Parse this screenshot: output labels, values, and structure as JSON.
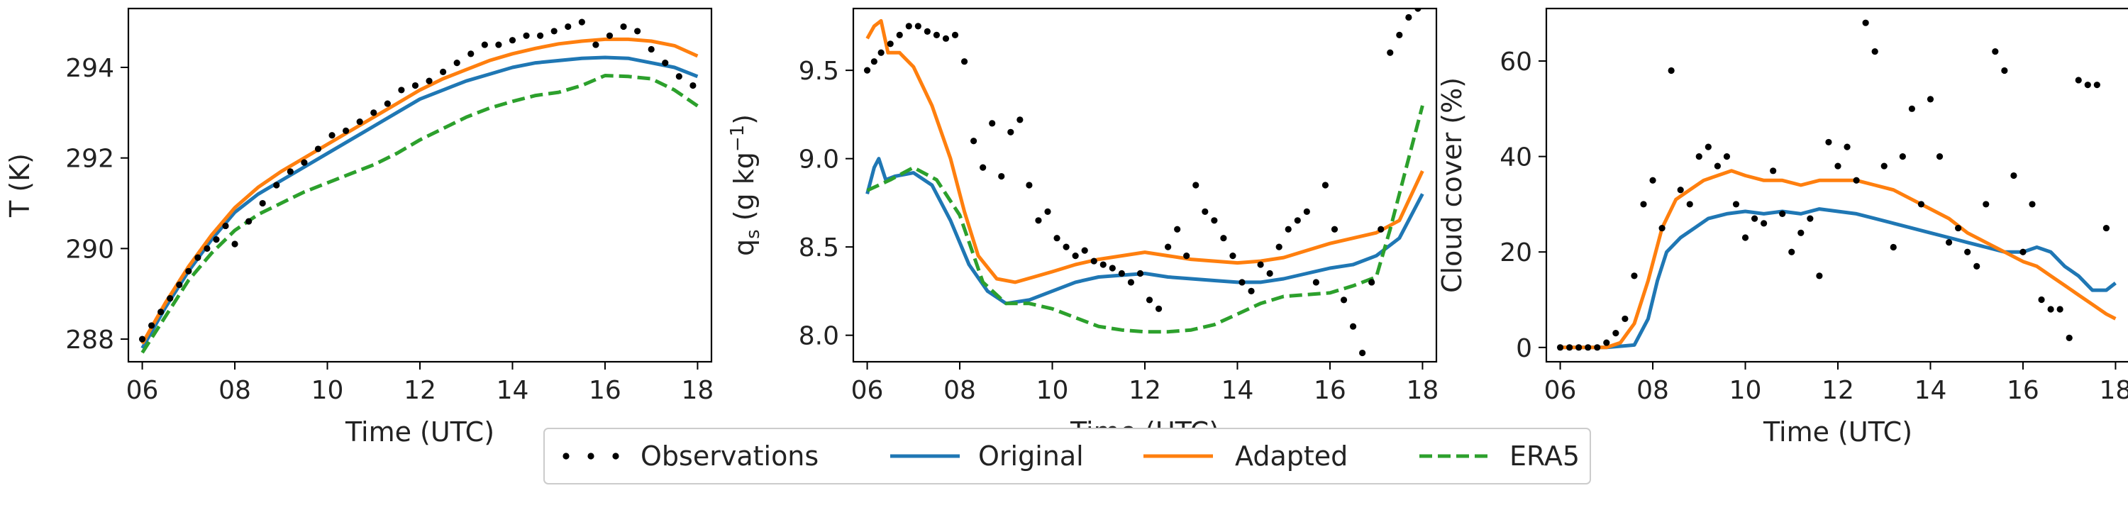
{
  "chart_data": [
    {
      "type": "line",
      "xlabel": "Time (UTC)",
      "ylabel": "T (K)",
      "xlim": [
        5.7,
        18.3
      ],
      "ylim": [
        287.5,
        295.3
      ],
      "xticks": [
        6,
        8,
        10,
        12,
        14,
        16,
        18
      ],
      "xtick_labels": [
        "06",
        "08",
        "10",
        "12",
        "14",
        "16",
        "18"
      ],
      "yticks": [
        288,
        290,
        292,
        294
      ],
      "ytick_labels": [
        "288",
        "290",
        "292",
        "294"
      ],
      "series": [
        {
          "name": "Original",
          "color": "#1f77b4",
          "style": "solid",
          "x": [
            6,
            6.5,
            7,
            7.5,
            8,
            8.5,
            9,
            9.5,
            10,
            10.5,
            11,
            11.5,
            12,
            12.5,
            13,
            13.5,
            14,
            14.5,
            15,
            15.5,
            16,
            16.5,
            17,
            17.5,
            18
          ],
          "y": [
            287.8,
            288.7,
            289.5,
            290.2,
            290.8,
            291.2,
            291.5,
            291.8,
            292.1,
            292.4,
            292.7,
            293.0,
            293.3,
            293.5,
            293.7,
            293.85,
            294.0,
            294.1,
            294.15,
            294.2,
            294.22,
            294.2,
            294.1,
            294.0,
            293.8
          ]
        },
        {
          "name": "Adapted",
          "color": "#ff7f0e",
          "style": "solid",
          "x": [
            6,
            6.5,
            7,
            7.5,
            8,
            8.5,
            9,
            9.5,
            10,
            10.5,
            11,
            11.5,
            12,
            12.5,
            13,
            13.5,
            14,
            14.5,
            15,
            15.5,
            16,
            16.5,
            17,
            17.5,
            18
          ],
          "y": [
            287.9,
            288.8,
            289.6,
            290.3,
            290.9,
            291.35,
            291.7,
            292.0,
            292.3,
            292.6,
            292.9,
            293.2,
            293.5,
            293.75,
            293.95,
            294.15,
            294.3,
            294.42,
            294.52,
            294.58,
            294.62,
            294.62,
            294.58,
            294.48,
            294.25
          ]
        },
        {
          "name": "ERA5",
          "color": "#2ca02c",
          "style": "dashed",
          "x": [
            6,
            6.5,
            7,
            7.5,
            8,
            8.5,
            9,
            9.5,
            10,
            10.5,
            11,
            11.5,
            12,
            12.5,
            13,
            13.5,
            14,
            14.5,
            15,
            15.5,
            16,
            16.5,
            17,
            17.5,
            18
          ],
          "y": [
            287.7,
            288.5,
            289.3,
            289.9,
            290.4,
            290.75,
            291.0,
            291.25,
            291.45,
            291.65,
            291.85,
            292.1,
            292.4,
            292.65,
            292.9,
            293.1,
            293.25,
            293.38,
            293.45,
            293.6,
            293.82,
            293.8,
            293.75,
            293.5,
            293.15
          ]
        },
        {
          "name": "Observations",
          "color": "#000000",
          "style": "dots",
          "x": [
            6,
            6.2,
            6.4,
            6.6,
            6.8,
            7,
            7.2,
            7.4,
            7.6,
            7.8,
            8,
            8.3,
            8.6,
            8.9,
            9.2,
            9.5,
            9.8,
            10.1,
            10.4,
            10.7,
            11,
            11.3,
            11.6,
            11.9,
            12.2,
            12.5,
            12.8,
            13.1,
            13.4,
            13.7,
            14,
            14.3,
            14.6,
            14.9,
            15.2,
            15.5,
            15.8,
            16.1,
            16.4,
            16.7,
            17,
            17.3,
            17.6,
            17.9
          ],
          "y": [
            288.0,
            288.3,
            288.6,
            288.9,
            289.2,
            289.5,
            289.8,
            290.0,
            290.2,
            290.5,
            290.1,
            290.6,
            291.0,
            291.4,
            291.7,
            291.9,
            292.2,
            292.5,
            292.6,
            292.8,
            293.0,
            293.2,
            293.5,
            293.6,
            293.7,
            293.9,
            294.1,
            294.3,
            294.5,
            294.5,
            294.6,
            294.7,
            294.7,
            294.8,
            294.9,
            295.0,
            294.5,
            294.7,
            294.9,
            294.8,
            294.4,
            294.1,
            293.8,
            293.6
          ]
        }
      ]
    },
    {
      "type": "line",
      "xlabel": "Time (UTC)",
      "ylabel_main": "q",
      "ylabel_sub": "s",
      "ylabel_rest": " (g kg",
      "ylabel_sup": "−1",
      "ylabel_close": ")",
      "xlim": [
        5.7,
        18.3
      ],
      "ylim": [
        7.85,
        9.85
      ],
      "xticks": [
        6,
        8,
        10,
        12,
        14,
        16,
        18
      ],
      "xtick_labels": [
        "06",
        "08",
        "10",
        "12",
        "14",
        "16",
        "18"
      ],
      "yticks": [
        8.0,
        8.5,
        9.0,
        9.5
      ],
      "ytick_labels": [
        "8.0",
        "8.5",
        "9.0",
        "9.5"
      ],
      "series": [
        {
          "name": "Original",
          "color": "#1f77b4",
          "style": "solid",
          "x": [
            6,
            6.15,
            6.25,
            6.4,
            6.6,
            7,
            7.4,
            7.8,
            8.2,
            8.6,
            9,
            9.5,
            10,
            10.5,
            11,
            11.5,
            12,
            12.5,
            13,
            13.5,
            14,
            14.5,
            15,
            15.5,
            16,
            16.5,
            17,
            17.5,
            18
          ],
          "y": [
            8.8,
            8.95,
            9.0,
            8.88,
            8.9,
            8.92,
            8.85,
            8.65,
            8.4,
            8.25,
            8.18,
            8.2,
            8.25,
            8.3,
            8.33,
            8.34,
            8.35,
            8.33,
            8.32,
            8.31,
            8.3,
            8.3,
            8.32,
            8.35,
            8.38,
            8.4,
            8.45,
            8.55,
            8.8
          ]
        },
        {
          "name": "Adapted",
          "color": "#ff7f0e",
          "style": "solid",
          "x": [
            6,
            6.15,
            6.3,
            6.45,
            6.7,
            7,
            7.4,
            7.8,
            8.1,
            8.4,
            8.8,
            9.2,
            9.6,
            10,
            10.5,
            11,
            11.5,
            12,
            12.5,
            13,
            13.5,
            14,
            14.5,
            15,
            15.5,
            16,
            16.5,
            17,
            17.5,
            18
          ],
          "y": [
            9.68,
            9.75,
            9.78,
            9.6,
            9.6,
            9.52,
            9.3,
            9.0,
            8.7,
            8.45,
            8.32,
            8.3,
            8.33,
            8.36,
            8.4,
            8.43,
            8.45,
            8.47,
            8.45,
            8.43,
            8.42,
            8.41,
            8.42,
            8.44,
            8.48,
            8.52,
            8.55,
            8.58,
            8.65,
            8.93
          ]
        },
        {
          "name": "ERA5",
          "color": "#2ca02c",
          "style": "dashed",
          "x": [
            6,
            6.5,
            7,
            7.5,
            8,
            8.5,
            9,
            9.5,
            10,
            10.5,
            11,
            11.5,
            12,
            12.5,
            13,
            13.5,
            14,
            14.5,
            15,
            15.5,
            16,
            16.5,
            17,
            17.3,
            17.6,
            18
          ],
          "y": [
            8.82,
            8.88,
            8.95,
            8.88,
            8.68,
            8.3,
            8.18,
            8.18,
            8.15,
            8.1,
            8.05,
            8.03,
            8.02,
            8.02,
            8.03,
            8.06,
            8.12,
            8.18,
            8.22,
            8.23,
            8.24,
            8.28,
            8.33,
            8.6,
            8.9,
            9.3
          ]
        },
        {
          "name": "Observations",
          "color": "#000000",
          "style": "dots",
          "x": [
            6,
            6.15,
            6.3,
            6.5,
            6.7,
            6.9,
            7.1,
            7.3,
            7.5,
            7.7,
            7.9,
            8.1,
            8.3,
            8.5,
            8.7,
            8.9,
            9.1,
            9.3,
            9.5,
            9.7,
            9.9,
            10.1,
            10.3,
            10.5,
            10.7,
            10.9,
            11.1,
            11.3,
            11.5,
            11.7,
            11.9,
            12.1,
            12.3,
            12.5,
            12.7,
            12.9,
            13.1,
            13.3,
            13.5,
            13.7,
            13.9,
            14.1,
            14.3,
            14.5,
            14.7,
            14.9,
            15.1,
            15.3,
            15.5,
            15.7,
            15.9,
            16.1,
            16.3,
            16.5,
            16.7,
            16.9,
            17.1,
            17.3,
            17.5,
            17.7,
            17.9
          ],
          "y": [
            9.5,
            9.55,
            9.6,
            9.65,
            9.7,
            9.75,
            9.75,
            9.72,
            9.7,
            9.68,
            9.7,
            9.55,
            9.1,
            8.95,
            9.2,
            8.9,
            9.15,
            9.22,
            8.85,
            8.65,
            8.7,
            8.55,
            8.5,
            8.45,
            8.48,
            8.42,
            8.4,
            8.38,
            8.35,
            8.3,
            8.35,
            8.2,
            8.15,
            8.5,
            8.6,
            8.45,
            8.85,
            8.7,
            8.65,
            8.55,
            8.45,
            8.3,
            8.25,
            8.4,
            8.35,
            8.5,
            8.6,
            8.65,
            8.7,
            8.3,
            8.85,
            8.6,
            8.2,
            8.05,
            7.9,
            8.3,
            8.6,
            9.6,
            9.7,
            9.8,
            9.85
          ]
        }
      ]
    },
    {
      "type": "line",
      "xlabel": "Time (UTC)",
      "ylabel": "Cloud cover (%)",
      "xlim": [
        5.7,
        18.3
      ],
      "ylim": [
        -3,
        71
      ],
      "xticks": [
        6,
        8,
        10,
        12,
        14,
        16,
        18
      ],
      "xtick_labels": [
        "06",
        "08",
        "10",
        "12",
        "14",
        "16",
        "18"
      ],
      "yticks": [
        0,
        20,
        40,
        60
      ],
      "ytick_labels": [
        "0",
        "20",
        "40",
        "60"
      ],
      "series": [
        {
          "name": "Original",
          "color": "#1f77b4",
          "style": "solid",
          "x": [
            6,
            7,
            7.6,
            7.9,
            8.1,
            8.3,
            8.6,
            8.9,
            9.2,
            9.6,
            10,
            10.4,
            10.8,
            11.2,
            11.6,
            12,
            12.4,
            12.8,
            13.2,
            13.6,
            14,
            14.4,
            14.8,
            15.2,
            15.6,
            16,
            16.3,
            16.6,
            16.9,
            17.2,
            17.5,
            17.8,
            18
          ],
          "y": [
            0,
            0,
            0.5,
            6,
            14,
            20,
            23,
            25,
            27,
            28,
            28.5,
            28,
            28.5,
            28,
            29,
            28.5,
            28,
            27,
            26,
            25,
            24,
            23,
            22,
            21,
            20,
            20,
            21,
            20,
            17,
            15,
            12,
            12,
            13.5
          ]
        },
        {
          "name": "Adapted",
          "color": "#ff7f0e",
          "style": "solid",
          "x": [
            6,
            7,
            7.3,
            7.6,
            7.9,
            8.2,
            8.5,
            8.8,
            9.1,
            9.4,
            9.7,
            10,
            10.4,
            10.8,
            11.2,
            11.6,
            12,
            12.4,
            12.8,
            13.2,
            13.6,
            14,
            14.4,
            14.8,
            15.2,
            15.6,
            16,
            16.3,
            16.6,
            16.9,
            17.2,
            17.5,
            17.8,
            18
          ],
          "y": [
            0,
            0,
            1,
            5,
            14,
            25,
            31,
            33,
            35,
            36,
            37,
            36,
            35,
            35,
            34,
            35,
            35,
            35,
            34,
            33,
            31,
            29,
            27,
            24,
            22,
            20,
            18,
            17,
            15,
            13,
            11,
            9,
            7,
            6
          ]
        },
        {
          "name": "Observations",
          "color": "#000000",
          "style": "dots",
          "x": [
            6,
            6.2,
            6.4,
            6.6,
            6.8,
            7.0,
            7.2,
            7.4,
            7.6,
            7.8,
            8.0,
            8.2,
            8.4,
            8.6,
            8.8,
            9.0,
            9.2,
            9.4,
            9.6,
            9.8,
            10.0,
            10.2,
            10.4,
            10.6,
            10.8,
            11.0,
            11.2,
            11.4,
            11.6,
            11.8,
            12.0,
            12.2,
            12.4,
            12.6,
            12.8,
            13.0,
            13.2,
            13.4,
            13.6,
            13.8,
            14.0,
            14.2,
            14.4,
            14.6,
            14.8,
            15.0,
            15.2,
            15.4,
            15.6,
            15.8,
            16.0,
            16.2,
            16.4,
            16.6,
            16.8,
            17.0,
            17.2,
            17.4,
            17.6,
            17.8
          ],
          "y": [
            0,
            0,
            0,
            0,
            0,
            1,
            3,
            6,
            15,
            30,
            35,
            25,
            58,
            33,
            30,
            40,
            42,
            38,
            40,
            30,
            23,
            27,
            26,
            37,
            28,
            20,
            24,
            27,
            15,
            43,
            38,
            42,
            35,
            68,
            62,
            38,
            21,
            40,
            50,
            30,
            52,
            40,
            22,
            25,
            20,
            17,
            30,
            62,
            58,
            36,
            20,
            30,
            10,
            8,
            8,
            2,
            56,
            55,
            55,
            25
          ]
        }
      ]
    }
  ],
  "legend": {
    "placement": "bottom-center",
    "items": [
      {
        "label": "Observations",
        "style": "dots",
        "color": "#000000"
      },
      {
        "label": "Original",
        "style": "solid",
        "color": "#1f77b4"
      },
      {
        "label": "Adapted",
        "style": "solid",
        "color": "#ff7f0e"
      },
      {
        "label": "ERA5",
        "style": "dashed",
        "color": "#2ca02c"
      }
    ]
  }
}
